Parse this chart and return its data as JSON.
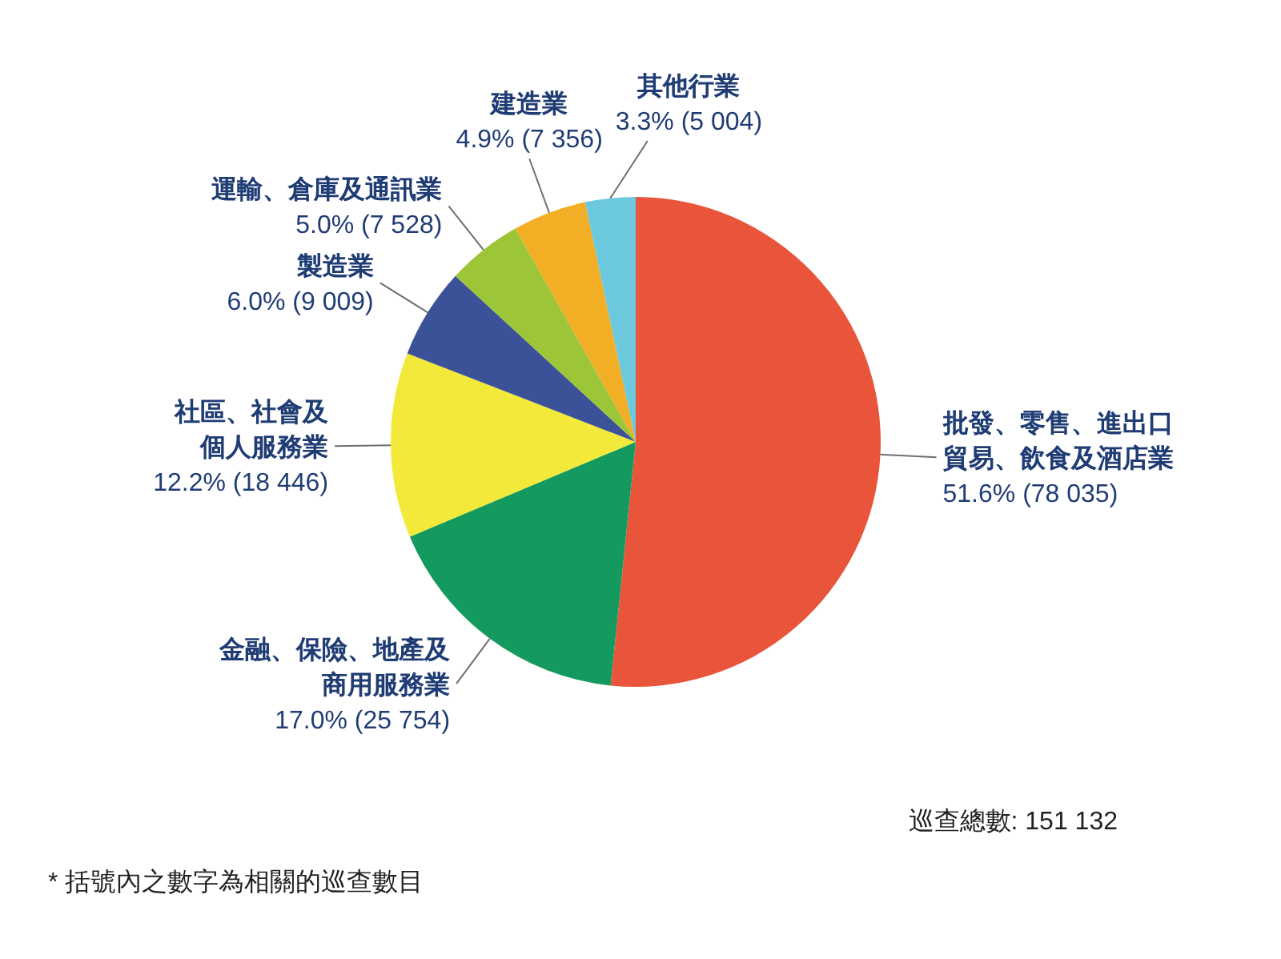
{
  "chart_data": {
    "type": "pie",
    "categories": [
      "批發、零售、進出口貿易、飲食及酒店業",
      "金融、保險、地產及商用服務業",
      "社區、社會及個人服務業",
      "製造業",
      "運輸、倉庫及通訊業",
      "建造業",
      "其他行業"
    ],
    "values": [
      78035,
      25754,
      18446,
      9009,
      7528,
      7356,
      5004
    ],
    "colors": [
      "#e9553a",
      "#14995e",
      "#f2e93a",
      "#3b5198",
      "#9cc537",
      "#f2ae24",
      "#6cc8dc"
    ],
    "value_labels": [
      "51.6% (78 035)",
      "17.0% (25 754)",
      "12.2% (18 446)",
      "6.0% (9 009)",
      "5.0% (7 528)",
      "4.9% (7 356)",
      "3.3% (5 004)"
    ],
    "annotations": [
      "巡查總數: 151 132",
      "* 括號內之數字為相關的巡查數目"
    ]
  }
}
